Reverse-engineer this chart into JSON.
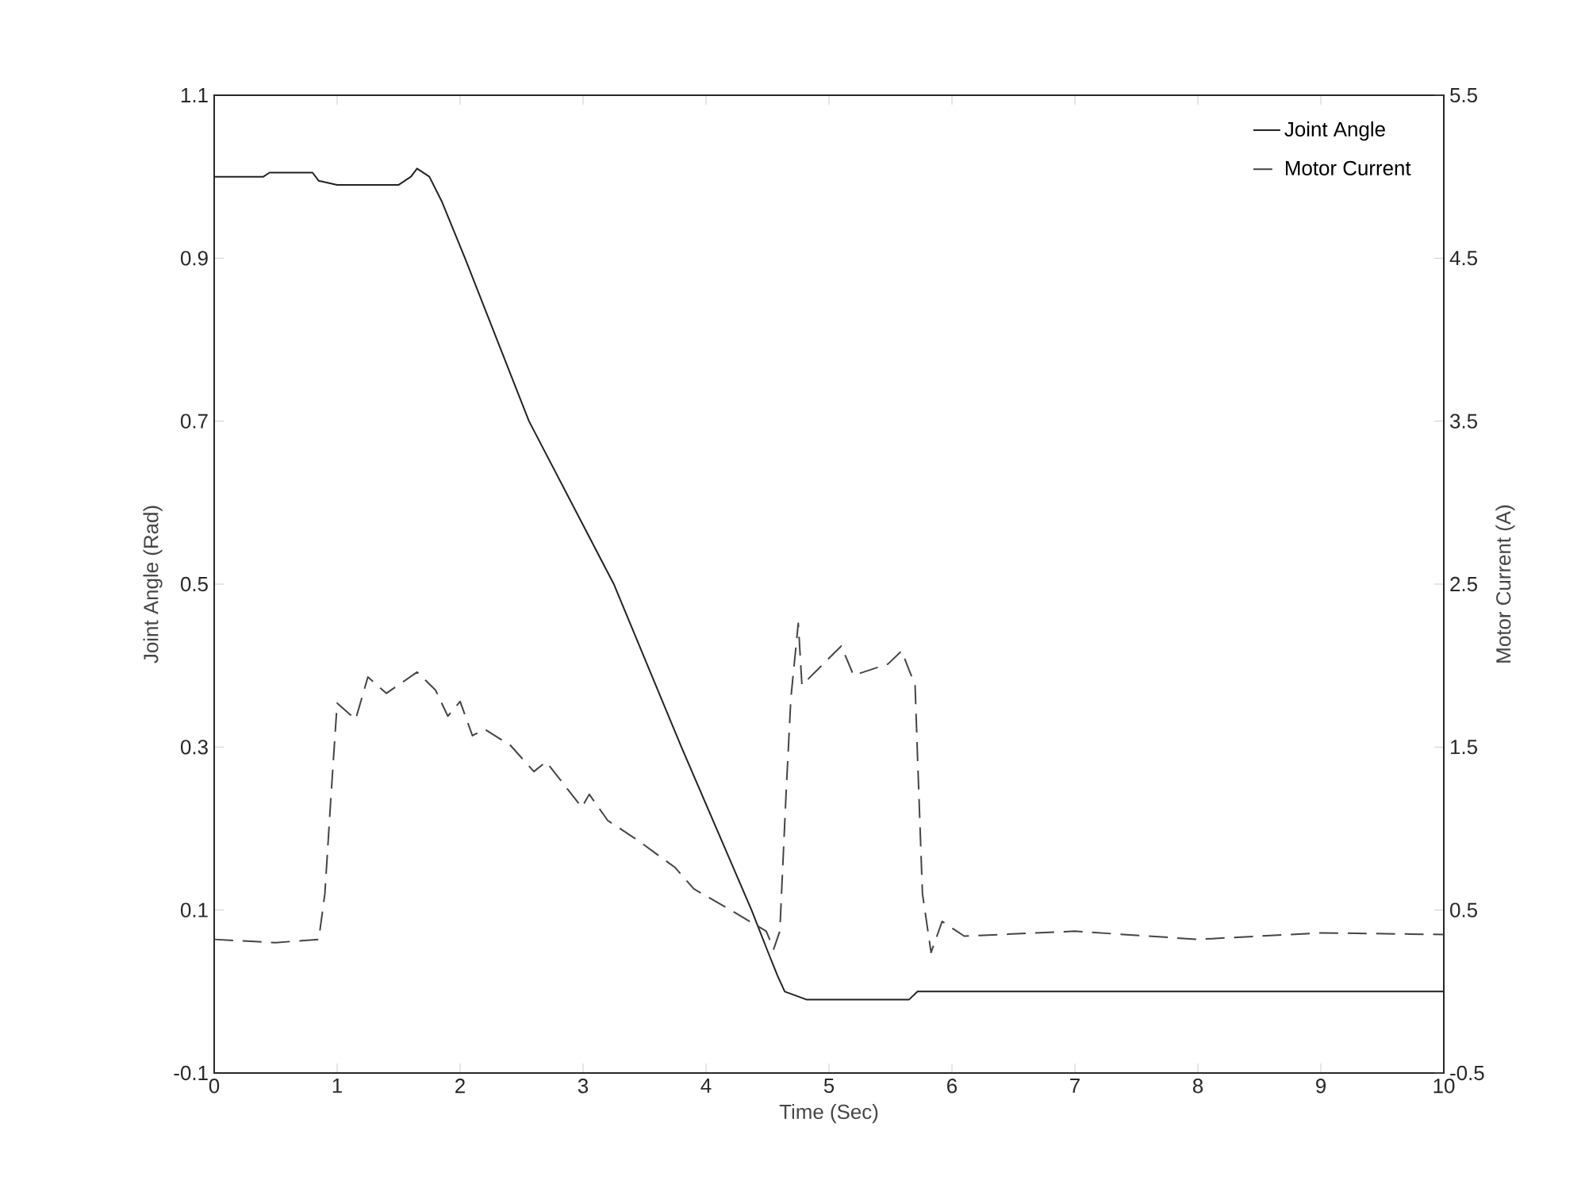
{
  "chart_data": {
    "type": "line",
    "xlabel": "Time (Sec)",
    "ylabel": "Joint Angle (Rad)",
    "y2label": "Motor Current (A)",
    "xlim": [
      0,
      10
    ],
    "xticks": [
      0,
      1,
      2,
      3,
      4,
      5,
      6,
      7,
      8,
      9,
      10
    ],
    "ylim": [
      -0.1,
      1.1
    ],
    "yticks": [
      -0.1,
      0.1,
      0.3,
      0.5,
      0.7,
      0.9,
      1.1
    ],
    "y2lim": [
      -0.5,
      5.5
    ],
    "y2ticks": [
      -0.5,
      0.5,
      1.5,
      2.5,
      3.5,
      4.5,
      5.5
    ],
    "legend": "top right",
    "grid": false,
    "series": [
      {
        "name": "Joint Angle",
        "color": "#222222",
        "line_style": "solid",
        "x": [
          0,
          0.4,
          0.45,
          0.8,
          0.85,
          1.0,
          1.5,
          1.6,
          1.65,
          1.75,
          1.85,
          2.04,
          2.56,
          3.25,
          3.8,
          4.37,
          4.5,
          4.58,
          4.64,
          4.82,
          5.65,
          5.72,
          10
        ],
        "values": [
          1.0,
          1.0,
          1.005,
          1.005,
          0.995,
          0.99,
          0.99,
          1.0,
          1.01,
          1.0,
          0.97,
          0.9,
          0.7,
          0.5,
          0.3,
          0.1,
          0.05,
          0.02,
          0.0,
          -0.01,
          -0.01,
          0.0,
          0.0
        ]
      },
      {
        "name": "Motor Current",
        "color": "#444444",
        "line_style": "dashed",
        "axis": "y2",
        "x": [
          0,
          0.5,
          0.85,
          0.9,
          0.95,
          1.0,
          1.15,
          1.25,
          1.4,
          1.65,
          1.8,
          1.9,
          2.0,
          2.1,
          2.2,
          2.41,
          2.6,
          2.7,
          2.99,
          3.05,
          3.2,
          3.46,
          3.75,
          3.9,
          4.2,
          4.49,
          4.55,
          4.6,
          4.65,
          4.69,
          4.75,
          4.78,
          5.1,
          5.2,
          5.48,
          5.59,
          5.7,
          5.72,
          5.76,
          5.83,
          5.92,
          6.1,
          7.0,
          8.0,
          9.0,
          10
        ],
        "values": [
          0.32,
          0.3,
          0.32,
          0.6,
          1.2,
          1.77,
          1.67,
          1.93,
          1.83,
          1.96,
          1.85,
          1.69,
          1.78,
          1.57,
          1.61,
          1.51,
          1.35,
          1.41,
          1.13,
          1.21,
          1.05,
          0.92,
          0.76,
          0.63,
          0.5,
          0.37,
          0.26,
          0.37,
          1.2,
          1.8,
          2.26,
          1.88,
          2.12,
          1.94,
          2.01,
          2.09,
          1.88,
          1.44,
          0.6,
          0.24,
          0.43,
          0.34,
          0.37,
          0.32,
          0.36,
          0.35
        ]
      }
    ]
  }
}
